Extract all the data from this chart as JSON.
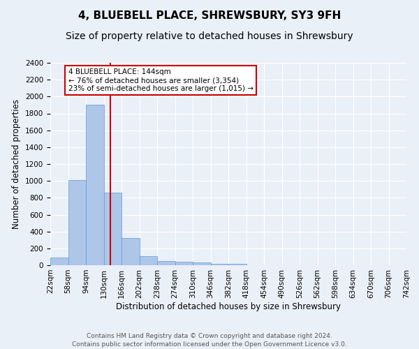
{
  "title": "4, BLUEBELL PLACE, SHREWSBURY, SY3 9FH",
  "subtitle": "Size of property relative to detached houses in Shrewsbury",
  "xlabel": "Distribution of detached houses by size in Shrewsbury",
  "ylabel": "Number of detached properties",
  "bar_values": [
    90,
    1010,
    1900,
    860,
    320,
    110,
    50,
    45,
    30,
    20,
    20,
    0,
    0,
    0,
    0,
    0,
    0,
    0,
    0,
    0
  ],
  "bin_labels": [
    "22sqm",
    "58sqm",
    "94sqm",
    "130sqm",
    "166sqm",
    "202sqm",
    "238sqm",
    "274sqm",
    "310sqm",
    "346sqm",
    "382sqm",
    "418sqm",
    "454sqm",
    "490sqm",
    "526sqm",
    "562sqm",
    "598sqm",
    "634sqm",
    "670sqm",
    "706sqm",
    "742sqm"
  ],
  "bin_edges": [
    22,
    58,
    94,
    130,
    166,
    202,
    238,
    274,
    310,
    346,
    382,
    418,
    454,
    490,
    526,
    562,
    598,
    634,
    670,
    706,
    742
  ],
  "bar_color": "#aec6e8",
  "bar_edge_color": "#5a9fd4",
  "vline_x": 144,
  "vline_color": "#cc0000",
  "annotation_line1": "4 BLUEBELL PLACE: 144sqm",
  "annotation_line2": "← 76% of detached houses are smaller (3,354)",
  "annotation_line3": "23% of semi-detached houses are larger (1,015) →",
  "annotation_box_color": "#ffffff",
  "annotation_box_edge": "#cc0000",
  "ylim": [
    0,
    2400
  ],
  "yticks": [
    0,
    200,
    400,
    600,
    800,
    1000,
    1200,
    1400,
    1600,
    1800,
    2000,
    2200,
    2400
  ],
  "footnote": "Contains HM Land Registry data © Crown copyright and database right 2024.\nContains public sector information licensed under the Open Government Licence v3.0.",
  "bg_color": "#eaf0f8",
  "plot_bg_color": "#eaf0f8",
  "grid_color": "#ffffff",
  "title_fontsize": 11,
  "subtitle_fontsize": 10,
  "axis_label_fontsize": 8.5,
  "tick_fontsize": 7.5,
  "footnote_fontsize": 6.5
}
